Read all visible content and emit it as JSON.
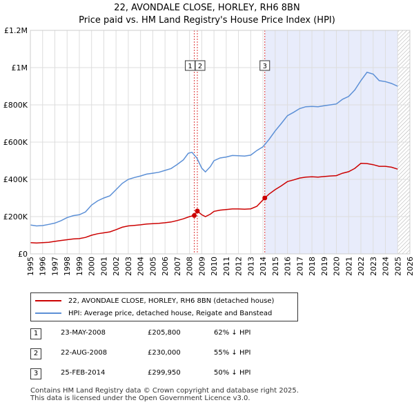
{
  "title_line1": "22, AVONDALE CLOSE, HORLEY, RH6 8BN",
  "title_line2": "Price paid vs. HM Land Registry's House Price Index (HPI)",
  "legend": {
    "property_label": "22, AVONDALE CLOSE, HORLEY, RH6 8BN (detached house)",
    "hpi_label": "HPI: Average price, detached house, Reigate and Banstead"
  },
  "colors": {
    "property": "#cc0000",
    "hpi": "#5b8fd6",
    "shade": "#e8ecfb",
    "marker": "#cc0000"
  },
  "sales": [
    {
      "num": "1",
      "date": "23-MAY-2008",
      "price": "£205,800",
      "pct": "62% ↓ HPI"
    },
    {
      "num": "2",
      "date": "22-AUG-2008",
      "price": "£230,000",
      "pct": "55% ↓ HPI"
    },
    {
      "num": "3",
      "date": "25-FEB-2014",
      "price": "£299,950",
      "pct": "50% ↓ HPI"
    }
  ],
  "footer": {
    "line1": "Contains HM Land Registry data © Crown copyright and database right 2025.",
    "line2": "This data is licensed under the Open Government Licence v3.0."
  },
  "chart_data": {
    "type": "line",
    "xlim": [
      1995,
      2026
    ],
    "ylim": [
      0,
      1200000
    ],
    "y_ticks": [
      {
        "value": 0,
        "label": "£0"
      },
      {
        "value": 200000,
        "label": "£200K"
      },
      {
        "value": 400000,
        "label": "£400K"
      },
      {
        "value": 600000,
        "label": "£600K"
      },
      {
        "value": 800000,
        "label": "£800K"
      },
      {
        "value": 1000000,
        "label": "£1M"
      },
      {
        "value": 1200000,
        "label": "£1.2M"
      }
    ],
    "x_ticks": [
      "1995",
      "1996",
      "1997",
      "1998",
      "1999",
      "2000",
      "2001",
      "2002",
      "2003",
      "2004",
      "2005",
      "2006",
      "2007",
      "2008",
      "2009",
      "2010",
      "2011",
      "2012",
      "2013",
      "2014",
      "2015",
      "2016",
      "2017",
      "2018",
      "2019",
      "2020",
      "2021",
      "2022",
      "2023",
      "2024",
      "2025",
      "2026"
    ],
    "grid": true,
    "shaded_ranges": [
      [
        2014.15,
        2025.0
      ]
    ],
    "hatched_from": 2025.0,
    "sale_markers": [
      {
        "label": "1",
        "x": 2008.39,
        "y": 205800
      },
      {
        "label": "2",
        "x": 2008.64,
        "y": 230000
      },
      {
        "label": "3",
        "x": 2014.15,
        "y": 299950
      }
    ],
    "series": [
      {
        "name": "HPI: Average price, detached house, Reigate and Banstead",
        "points": [
          [
            1995.0,
            155000
          ],
          [
            1995.5,
            150000
          ],
          [
            1996.0,
            152000
          ],
          [
            1996.5,
            158000
          ],
          [
            1997.0,
            165000
          ],
          [
            1997.5,
            178000
          ],
          [
            1998.0,
            195000
          ],
          [
            1998.5,
            205000
          ],
          [
            1999.0,
            210000
          ],
          [
            1999.5,
            225000
          ],
          [
            2000.0,
            262000
          ],
          [
            2000.5,
            285000
          ],
          [
            2001.0,
            300000
          ],
          [
            2001.5,
            312000
          ],
          [
            2002.0,
            345000
          ],
          [
            2002.5,
            378000
          ],
          [
            2003.0,
            400000
          ],
          [
            2003.5,
            410000
          ],
          [
            2004.0,
            418000
          ],
          [
            2004.5,
            428000
          ],
          [
            2005.0,
            433000
          ],
          [
            2005.5,
            438000
          ],
          [
            2006.0,
            448000
          ],
          [
            2006.5,
            458000
          ],
          [
            2007.0,
            480000
          ],
          [
            2007.5,
            505000
          ],
          [
            2007.9,
            540000
          ],
          [
            2008.2,
            545000
          ],
          [
            2008.6,
            515000
          ],
          [
            2009.0,
            460000
          ],
          [
            2009.3,
            440000
          ],
          [
            2009.7,
            468000
          ],
          [
            2010.0,
            500000
          ],
          [
            2010.5,
            515000
          ],
          [
            2011.0,
            520000
          ],
          [
            2011.5,
            528000
          ],
          [
            2012.0,
            527000
          ],
          [
            2012.5,
            525000
          ],
          [
            2013.0,
            530000
          ],
          [
            2013.5,
            555000
          ],
          [
            2014.0,
            575000
          ],
          [
            2014.5,
            615000
          ],
          [
            2015.0,
            660000
          ],
          [
            2015.5,
            700000
          ],
          [
            2016.0,
            742000
          ],
          [
            2016.5,
            760000
          ],
          [
            2017.0,
            780000
          ],
          [
            2017.5,
            790000
          ],
          [
            2018.0,
            792000
          ],
          [
            2018.5,
            790000
          ],
          [
            2019.0,
            795000
          ],
          [
            2019.5,
            800000
          ],
          [
            2020.0,
            805000
          ],
          [
            2020.5,
            830000
          ],
          [
            2021.0,
            845000
          ],
          [
            2021.5,
            880000
          ],
          [
            2022.0,
            930000
          ],
          [
            2022.5,
            975000
          ],
          [
            2023.0,
            965000
          ],
          [
            2023.5,
            930000
          ],
          [
            2024.0,
            925000
          ],
          [
            2024.5,
            915000
          ],
          [
            2025.0,
            900000
          ]
        ]
      },
      {
        "name": "22, AVONDALE CLOSE, HORLEY, RH6 8BN (detached house)",
        "points": [
          [
            1995.0,
            60000
          ],
          [
            1995.5,
            58000
          ],
          [
            1996.0,
            60000
          ],
          [
            1996.5,
            62000
          ],
          [
            1997.0,
            67000
          ],
          [
            1997.5,
            72000
          ],
          [
            1998.0,
            76000
          ],
          [
            1998.5,
            80000
          ],
          [
            1999.0,
            82000
          ],
          [
            1999.5,
            88000
          ],
          [
            2000.0,
            100000
          ],
          [
            2000.5,
            108000
          ],
          [
            2001.0,
            113000
          ],
          [
            2001.5,
            118000
          ],
          [
            2002.0,
            130000
          ],
          [
            2002.5,
            143000
          ],
          [
            2003.0,
            150000
          ],
          [
            2003.5,
            153000
          ],
          [
            2004.0,
            156000
          ],
          [
            2004.5,
            160000
          ],
          [
            2005.0,
            162000
          ],
          [
            2005.5,
            164000
          ],
          [
            2006.0,
            167000
          ],
          [
            2006.5,
            171000
          ],
          [
            2007.0,
            179000
          ],
          [
            2007.5,
            188000
          ],
          [
            2008.0,
            200000
          ],
          [
            2008.39,
            205800
          ],
          [
            2008.64,
            230000
          ],
          [
            2009.0,
            210000
          ],
          [
            2009.3,
            200000
          ],
          [
            2009.7,
            213000
          ],
          [
            2010.0,
            228000
          ],
          [
            2010.5,
            235000
          ],
          [
            2011.0,
            238000
          ],
          [
            2011.5,
            241000
          ],
          [
            2012.0,
            241000
          ],
          [
            2012.5,
            240000
          ],
          [
            2013.0,
            242000
          ],
          [
            2013.5,
            255000
          ],
          [
            2014.15,
            299950
          ],
          [
            2014.5,
            321000
          ],
          [
            2015.0,
            345000
          ],
          [
            2015.5,
            365000
          ],
          [
            2016.0,
            388000
          ],
          [
            2016.5,
            397000
          ],
          [
            2017.0,
            407000
          ],
          [
            2017.5,
            412000
          ],
          [
            2018.0,
            414000
          ],
          [
            2018.5,
            412000
          ],
          [
            2019.0,
            415000
          ],
          [
            2019.5,
            418000
          ],
          [
            2020.0,
            420000
          ],
          [
            2020.5,
            433000
          ],
          [
            2021.0,
            441000
          ],
          [
            2021.5,
            459000
          ],
          [
            2022.0,
            486000
          ],
          [
            2022.5,
            485000
          ],
          [
            2023.0,
            479000
          ],
          [
            2023.5,
            470000
          ],
          [
            2024.0,
            470000
          ],
          [
            2024.5,
            465000
          ],
          [
            2025.0,
            455000
          ]
        ]
      }
    ]
  }
}
